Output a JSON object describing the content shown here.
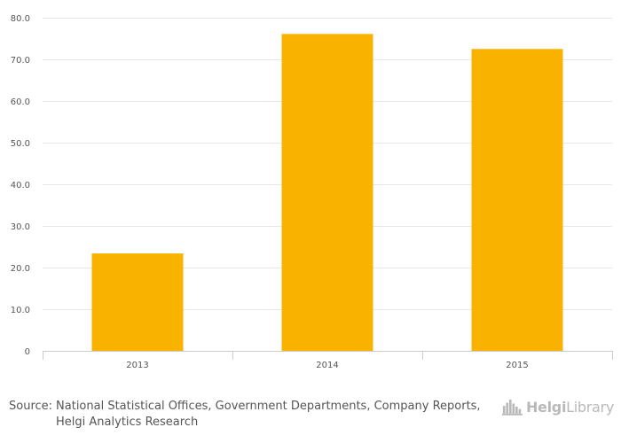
{
  "chart_data": {
    "type": "bar",
    "title": "",
    "xlabel": "",
    "ylabel": "",
    "categories": [
      "2013",
      "2014",
      "2015"
    ],
    "values": [
      23.4,
      76.1,
      72.5
    ],
    "ylim": [
      0,
      80
    ],
    "yticks": [
      0,
      10,
      20,
      30,
      40,
      50,
      60,
      70,
      80
    ],
    "ytick_labels": [
      "0",
      "10.0",
      "20.0",
      "30.0",
      "40.0",
      "50.0",
      "60.0",
      "70.0",
      "80.0"
    ],
    "grid": true,
    "legend": "none",
    "bar_color": "#f9b200"
  },
  "colors": {
    "grid": "#e6e6e6",
    "axis": "#cccccc",
    "text": "#555555",
    "logo": "#b9b9b9"
  },
  "footer": {
    "source_label": "Source:",
    "source_text": "National Statistical Offices, Government Departments, Company Reports, Helgi Analytics Research"
  },
  "logo": {
    "icon": "helgi-skyline-icon",
    "text_bold": "Helgi",
    "text_regular": "Library"
  }
}
